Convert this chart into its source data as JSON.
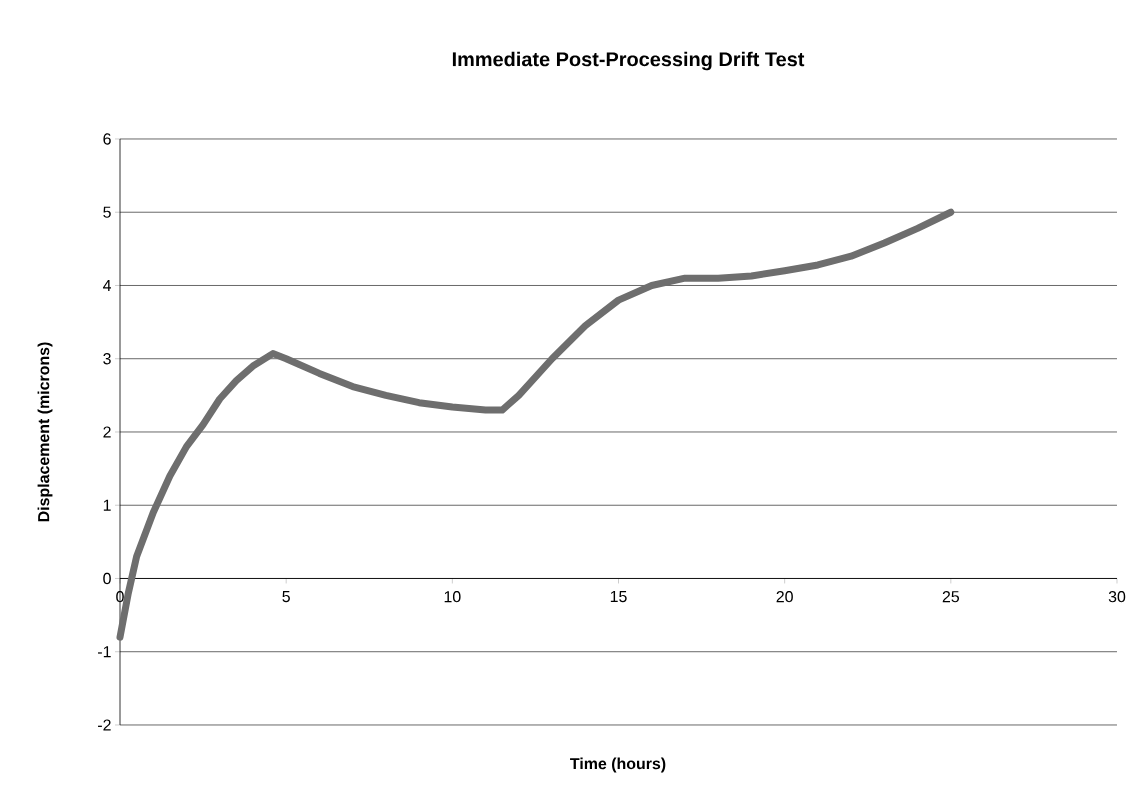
{
  "chart_data": {
    "type": "line",
    "title": "Immediate Post-Processing Drift Test",
    "xlabel": "Time (hours)",
    "ylabel": "Displacement (microns)",
    "x": [
      0,
      0.25,
      0.5,
      1,
      1.5,
      2,
      2.5,
      3,
      3.5,
      4,
      4.6,
      5,
      6,
      7,
      8,
      9,
      10,
      11,
      11.5,
      12,
      13,
      14,
      15,
      16,
      17,
      18,
      19,
      20,
      21,
      22,
      23,
      24,
      25
    ],
    "series": [
      {
        "color": "#6e6e6e",
        "values": [
          -0.8,
          -0.2,
          0.3,
          0.9,
          1.4,
          1.8,
          2.1,
          2.45,
          2.7,
          2.9,
          3.07,
          3.0,
          2.8,
          2.62,
          2.5,
          2.4,
          2.34,
          2.3,
          2.3,
          2.5,
          3.0,
          3.45,
          3.8,
          4.0,
          4.1,
          4.1,
          4.13,
          4.2,
          4.28,
          4.4,
          4.58,
          4.78,
          5.0
        ]
      }
    ],
    "xlim": [
      0,
      30
    ],
    "ylim": [
      -2,
      6
    ],
    "xticks": [
      0,
      5,
      10,
      15,
      20,
      25,
      30
    ],
    "yticks": [
      -2,
      -1,
      0,
      1,
      2,
      3,
      4,
      5,
      6
    ],
    "grid": "y"
  }
}
